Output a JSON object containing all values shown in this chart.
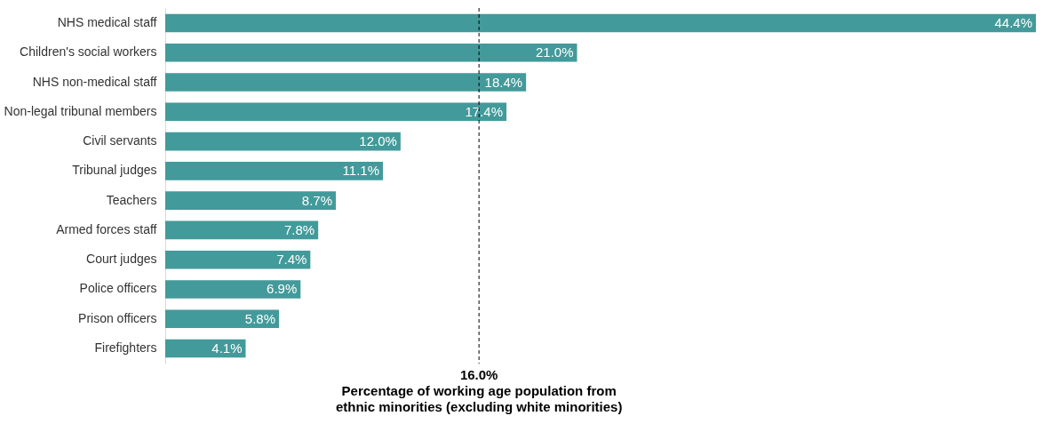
{
  "chart_data": {
    "type": "bar",
    "orientation": "horizontal",
    "categories": [
      "NHS medical staff",
      "Children's social workers",
      "NHS non-medical staff",
      "Non-legal tribunal members",
      "Civil servants",
      "Tribunal judges",
      "Teachers",
      "Armed forces staff",
      "Court judges",
      "Police officers",
      "Prison officers",
      "Firefighters"
    ],
    "values": [
      44.4,
      21.0,
      18.4,
      17.4,
      12.0,
      11.1,
      8.7,
      7.8,
      7.4,
      6.9,
      5.8,
      4.1
    ],
    "value_labels": [
      "44.4%",
      "21.0%",
      "18.4%",
      "17.4%",
      "12.0%",
      "11.1%",
      "8.7%",
      "7.8%",
      "7.4%",
      "6.9%",
      "5.8%",
      "4.1%"
    ],
    "color": "#439a9a",
    "xlim": [
      0,
      44.4
    ],
    "ref_lines": [
      {
        "axis": "x",
        "value": 16.0,
        "label": "16.0%",
        "line_style": "dashed",
        "color": "#000000"
      }
    ],
    "annotations": [
      "Percentage of working age population from ethnic minorities (excluding white minorities)"
    ]
  }
}
